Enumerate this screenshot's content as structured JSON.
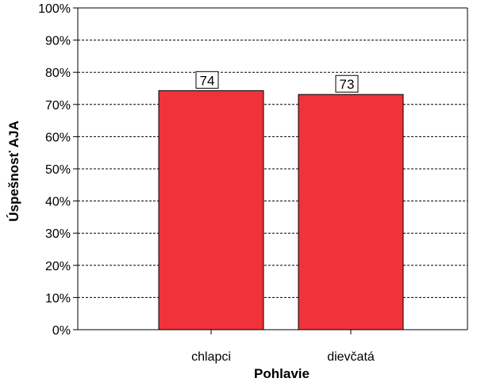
{
  "chart_data": {
    "type": "bar",
    "categories": [
      "chlapci",
      "dievčatá"
    ],
    "values": [
      74.3,
      73.1
    ],
    "data_labels": [
      "74",
      "73"
    ],
    "xlabel": "Pohlavie",
    "ylabel": "Úspešnosť AJA",
    "ylim": [
      0,
      100
    ],
    "yticks": [
      0,
      10,
      20,
      30,
      40,
      50,
      60,
      70,
      80,
      90,
      100
    ],
    "ytick_labels": [
      "0%",
      "10%",
      "20%",
      "30%",
      "40%",
      "50%",
      "60%",
      "70%",
      "80%",
      "90%",
      "100%"
    ],
    "grid": "dashed-horizontal",
    "legend": "none",
    "colors": {
      "bar": "#f0323a",
      "outline": "#000000",
      "grid": "#000000"
    }
  }
}
